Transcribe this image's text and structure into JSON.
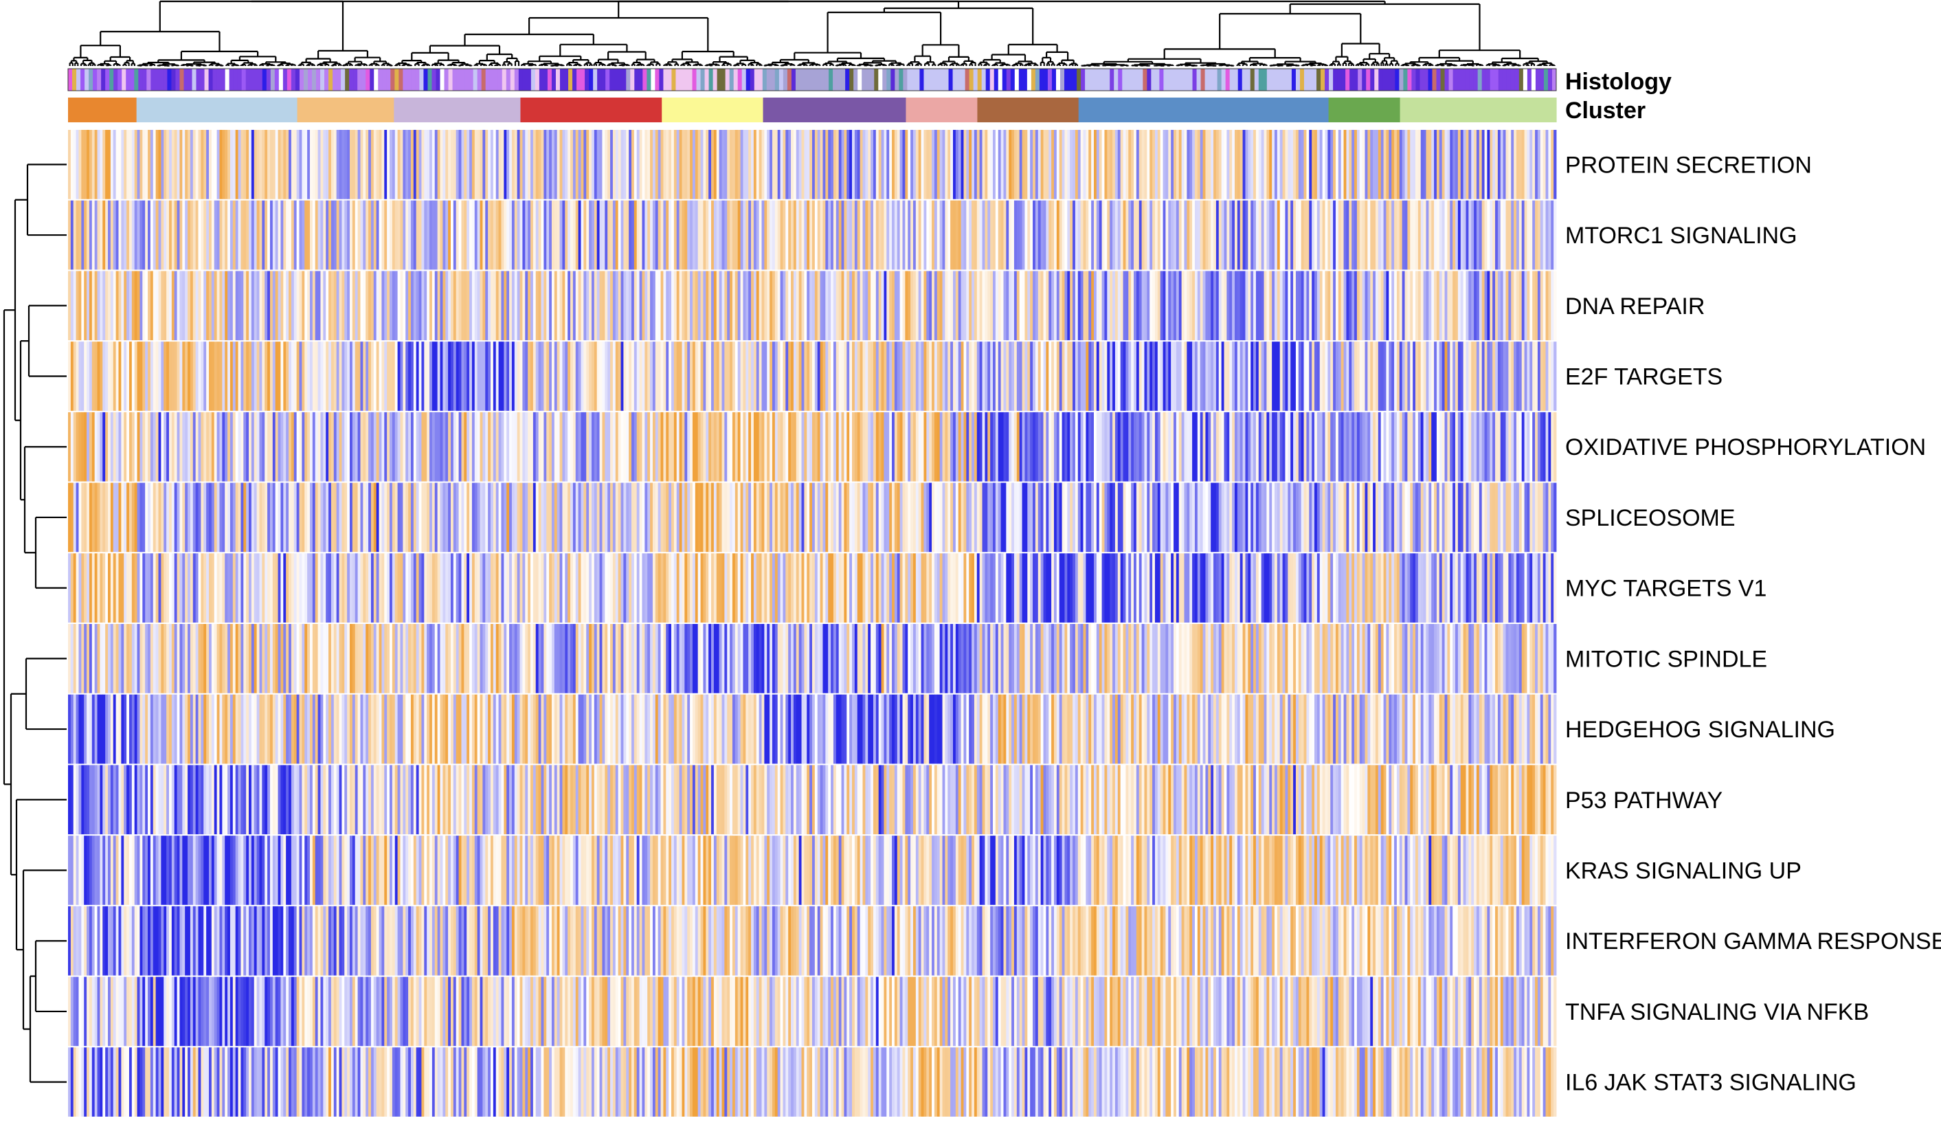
{
  "chart_data": {
    "type": "heatmap",
    "title": "",
    "xlabel": "",
    "ylabel": "",
    "rows": [
      "PROTEIN SECRETION",
      "MTORC1 SIGNALING",
      "DNA REPAIR",
      "E2F TARGETS",
      "OXIDATIVE PHOSPHORYLATION",
      "SPLICEOSOME",
      "MYC TARGETS V1",
      "MITOTIC SPINDLE",
      "HEDGEHOG SIGNALING",
      "P53 PATHWAY",
      "KRAS SIGNALING UP",
      "INTERFERON GAMMA RESPONSE",
      "TNFA SIGNALING VIA NFKB",
      "IL6 JAK STAT3 SIGNALING"
    ],
    "annotation_tracks": [
      "Histology",
      "Cluster"
    ],
    "clusters": [
      {
        "color": "#e8872f",
        "fraction": 0.046
      },
      {
        "color": "#b8d3e8",
        "fraction": 0.108
      },
      {
        "color": "#f3c07e",
        "fraction": 0.065
      },
      {
        "color": "#c8b5da",
        "fraction": 0.085
      },
      {
        "color": "#d43535",
        "fraction": 0.095
      },
      {
        "color": "#fbf995",
        "fraction": 0.068
      },
      {
        "color": "#7a57a6",
        "fraction": 0.096
      },
      {
        "color": "#eba7a5",
        "fraction": 0.048
      },
      {
        "color": "#a9673f",
        "fraction": 0.068
      },
      {
        "color": "#5b8ec7",
        "fraction": 0.168
      },
      {
        "color": "#6aa84f",
        "fraction": 0.048
      },
      {
        "color": "#c4e19c",
        "fraction": 0.105
      }
    ],
    "histology_palette": [
      "#9b59f5",
      "#7b3fe4",
      "#b97ff2",
      "#5a2bd8",
      "#e25be0",
      "#f0c6f0",
      "#ffffff",
      "#2b1ee8",
      "#6e6b3a",
      "#a7a3d6",
      "#c6c6f5",
      "#7fa6c8",
      "#c86b6b",
      "#4fa0a0",
      "#e0b24a"
    ],
    "color_scale": {
      "low": "#2a2ae6",
      "mid": "#ffffff",
      "high": "#f0a23c",
      "range": [
        -1,
        1
      ]
    },
    "column_pattern": [
      [
        0.25,
        0.1,
        0.1,
        0.05,
        0.0,
        0.2,
        -0.05,
        0.1,
        0.05,
        0.1,
        0.15,
        -0.1
      ],
      [
        0.1,
        0.05,
        0.1,
        0.05,
        -0.1,
        0.15,
        0.1,
        0.05,
        -0.1,
        -0.2,
        -0.15,
        -0.1
      ],
      [
        0.4,
        0.2,
        0.0,
        0.05,
        0.05,
        0.1,
        0.15,
        0.1,
        0.0,
        -0.15,
        -0.1,
        -0.05
      ],
      [
        0.45,
        0.3,
        0.15,
        -0.45,
        0.05,
        0.1,
        0.1,
        0.2,
        -0.1,
        -0.4,
        -0.05,
        -0.1
      ],
      [
        0.35,
        -0.15,
        -0.05,
        0.0,
        0.0,
        0.45,
        0.3,
        0.25,
        -0.4,
        -0.35,
        -0.2,
        -0.35
      ],
      [
        0.4,
        -0.05,
        -0.05,
        0.0,
        0.0,
        0.3,
        0.25,
        0.2,
        -0.35,
        -0.45,
        -0.25,
        -0.15
      ],
      [
        0.45,
        -0.1,
        -0.05,
        -0.05,
        0.05,
        0.45,
        0.3,
        0.25,
        -0.45,
        -0.4,
        0.15,
        -0.2
      ],
      [
        -0.1,
        0.1,
        0.35,
        0.1,
        -0.1,
        -0.6,
        -0.3,
        -0.55,
        0.05,
        0.15,
        0.1,
        0.05
      ],
      [
        -0.45,
        0.15,
        0.15,
        0.25,
        0.1,
        0.05,
        -0.55,
        -0.45,
        0.2,
        0.15,
        0.05,
        0.05
      ],
      [
        -0.35,
        -0.55,
        -0.2,
        0.05,
        0.15,
        0.25,
        0.05,
        0.1,
        0.0,
        0.15,
        0.2,
        0.4
      ],
      [
        -0.35,
        -0.65,
        -0.2,
        -0.05,
        0.1,
        0.2,
        0.05,
        0.1,
        -0.4,
        0.35,
        0.2,
        0.1
      ],
      [
        -0.3,
        -0.65,
        -0.2,
        -0.1,
        0.1,
        0.3,
        0.05,
        0.15,
        -0.1,
        0.25,
        0.2,
        0.15
      ],
      [
        -0.3,
        -0.6,
        -0.15,
        -0.1,
        0.15,
        0.3,
        0.05,
        0.15,
        -0.1,
        0.2,
        0.15,
        0.15
      ],
      [
        -0.25,
        -0.3,
        -0.15,
        -0.2,
        0.05,
        0.35,
        0.1,
        0.3,
        -0.15,
        0.15,
        0.1,
        0.15
      ]
    ],
    "legend": "none",
    "grid": false
  }
}
